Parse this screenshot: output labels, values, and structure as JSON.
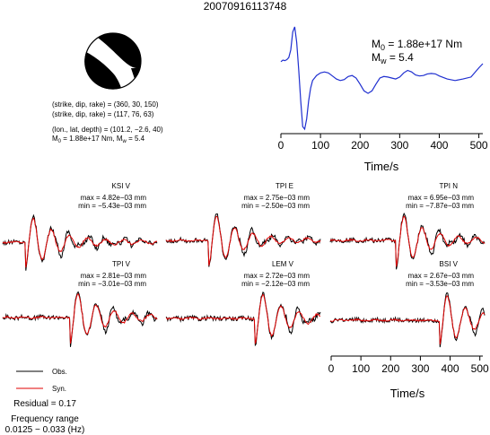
{
  "chart_data": {
    "type": "line",
    "title": "20070916113748",
    "colors": {
      "obs": "#000000",
      "syn": "#e00000",
      "stf": "#1f2fd0"
    },
    "mechanism": {
      "line1": "(strike, dip, rake) = (360, 30, 150)",
      "line2": "(strike, dip, rake) = (117, 76, 63)",
      "line3": "(lon., lat, depth) = (101.2, −2.6, 40)",
      "line4": "M₀ = 1.88e+17 Nm, Mᵥᵥ = 5.4"
    },
    "mechanism_text": {
      "l1": "(strike, dip, rake) = (360, 30, 150)",
      "l2": "(strike, dip, rake) = (117, 76, 63)",
      "l3": "(lon., lat, depth) = (101.2, −2.6, 40)",
      "l4a": "M",
      "l4b": "0",
      "l4c": " = 1.88e+17 Nm, M",
      "l4d": "w",
      "l4e": " = 5.4"
    },
    "stf": {
      "m0_prefix": "M",
      "m0_sub": "0",
      "m0_value": " = 1.88e+17 Nm",
      "mw_prefix": "M",
      "mw_sub": "w",
      "mw_value": " = 5.4",
      "xlabel": "Time/s",
      "xlim": [
        0,
        510
      ],
      "xticks": [
        0,
        100,
        200,
        300,
        400,
        500
      ],
      "t": [
        0,
        5,
        10,
        15,
        20,
        25,
        30,
        35,
        40,
        45,
        50,
        55,
        60,
        65,
        70,
        75,
        80,
        90,
        100,
        110,
        120,
        130,
        140,
        150,
        160,
        170,
        180,
        190,
        200,
        210,
        220,
        230,
        240,
        250,
        260,
        270,
        280,
        290,
        300,
        310,
        320,
        330,
        340,
        350,
        360,
        370,
        380,
        390,
        400,
        420,
        440,
        460,
        480,
        500,
        510
      ],
      "v": [
        0.32,
        0.35,
        0.34,
        0.36,
        0.4,
        0.55,
        0.9,
        1.0,
        0.7,
        0.15,
        -0.45,
        -0.95,
        -1.0,
        -0.8,
        -0.45,
        -0.2,
        -0.05,
        0.05,
        0.1,
        0.12,
        0.1,
        0.04,
        -0.02,
        -0.05,
        -0.03,
        0.03,
        0.05,
        0.0,
        -0.12,
        -0.25,
        -0.3,
        -0.25,
        -0.12,
        0.0,
        0.03,
        0.02,
        0.0,
        -0.02,
        0.02,
        0.1,
        0.15,
        0.12,
        0.06,
        0.04,
        0.05,
        0.08,
        0.09,
        0.08,
        0.04,
        -0.02,
        -0.05,
        -0.02,
        0.02,
        0.2,
        0.28
      ]
    },
    "waveforms": [
      {
        "station": "KSI V",
        "max": "max = 4.82e−03 mm",
        "min": "min = −5.43e−03 mm",
        "onset": 0.17
      },
      {
        "station": "TPI E",
        "max": "max = 2.75e−03 mm",
        "min": "min = −2.50e−03 mm",
        "onset": 0.3
      },
      {
        "station": "TPI N",
        "max": "max = 6.95e−03 mm",
        "min": "min = −7.87e−03 mm",
        "onset": 0.45
      },
      {
        "station": "TPI V",
        "max": "max = 2.81e−03 mm",
        "min": "min = −3.01e−03 mm",
        "onset": 0.46
      },
      {
        "station": "LEM V",
        "max": "max = 2.72e−03 mm",
        "min": "min = −2.12e−03 mm",
        "onset": 0.6
      },
      {
        "station": "BSI V",
        "max": "max = 2.67e−03 mm",
        "min": "min = −3.53e−03 mm",
        "onset": 0.73
      }
    ],
    "bottom_axis": {
      "xlabel": "Time/s",
      "xlim": [
        0,
        510
      ],
      "xticks": [
        0,
        100,
        200,
        300,
        400,
        500
      ]
    },
    "legend": {
      "obs": "Obs.",
      "syn": "Syn."
    },
    "info": {
      "residual": "Residual = 0.17",
      "freq_title": "Frequency range",
      "freq_value": "0.0125 − 0.033 (Hz)"
    }
  }
}
